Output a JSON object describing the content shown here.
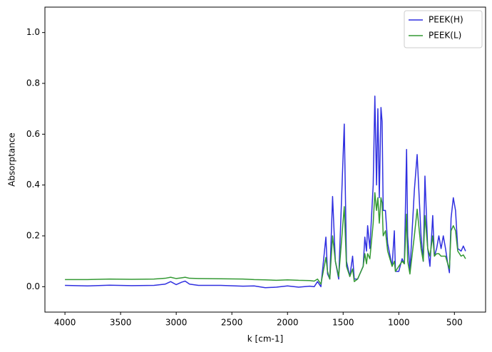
{
  "chart_data": {
    "type": "line",
    "xlabel": "k [cm-1]",
    "ylabel": "Absorptance",
    "x": [
      4000,
      3800,
      3600,
      3400,
      3200,
      3100,
      3050,
      3000,
      2950,
      2920,
      2880,
      2800,
      2600,
      2400,
      2300,
      2200,
      2100,
      2000,
      1900,
      1800,
      1760,
      1730,
      1700,
      1655,
      1640,
      1620,
      1595,
      1570,
      1540,
      1490,
      1470,
      1440,
      1415,
      1400,
      1370,
      1320,
      1305,
      1290,
      1280,
      1260,
      1230,
      1215,
      1200,
      1188,
      1175,
      1160,
      1150,
      1140,
      1120,
      1100,
      1060,
      1040,
      1030,
      1000,
      970,
      950,
      930,
      920,
      900,
      860,
      835,
      800,
      780,
      765,
      740,
      720,
      695,
      680,
      660,
      640,
      620,
      600,
      580,
      560,
      545,
      530,
      510,
      490,
      470,
      440,
      420,
      400
    ],
    "series": [
      {
        "name": "PEEK(H)",
        "color": "#2f2fe0",
        "values": [
          0.005,
          0.003,
          0.006,
          0.004,
          0.005,
          0.01,
          0.02,
          0.008,
          0.018,
          0.022,
          0.01,
          0.005,
          0.005,
          0.002,
          0.003,
          -0.004,
          -0.002,
          0.003,
          -0.002,
          0.002,
          0.0,
          0.02,
          0.0,
          0.195,
          0.05,
          0.03,
          0.355,
          0.1,
          0.03,
          0.64,
          0.1,
          0.04,
          0.12,
          0.03,
          0.03,
          0.08,
          0.195,
          0.14,
          0.24,
          0.15,
          0.4,
          0.75,
          0.4,
          0.7,
          0.35,
          0.705,
          0.65,
          0.3,
          0.3,
          0.17,
          0.08,
          0.22,
          0.06,
          0.06,
          0.11,
          0.09,
          0.54,
          0.2,
          0.06,
          0.38,
          0.52,
          0.2,
          0.1,
          0.435,
          0.15,
          0.08,
          0.28,
          0.12,
          0.15,
          0.2,
          0.15,
          0.2,
          0.15,
          0.09,
          0.055,
          0.27,
          0.35,
          0.3,
          0.15,
          0.14,
          0.16,
          0.14
        ]
      },
      {
        "name": "PEEK(L)",
        "color": "#339933",
        "values": [
          0.028,
          0.028,
          0.03,
          0.029,
          0.03,
          0.033,
          0.037,
          0.032,
          0.035,
          0.037,
          0.033,
          0.032,
          0.031,
          0.03,
          0.028,
          0.027,
          0.025,
          0.027,
          0.025,
          0.024,
          0.022,
          0.03,
          0.01,
          0.115,
          0.06,
          0.03,
          0.2,
          0.1,
          0.04,
          0.315,
          0.08,
          0.04,
          0.07,
          0.02,
          0.03,
          0.08,
          0.13,
          0.09,
          0.13,
          0.11,
          0.25,
          0.37,
          0.3,
          0.35,
          0.25,
          0.35,
          0.33,
          0.2,
          0.22,
          0.14,
          0.08,
          0.1,
          0.06,
          0.08,
          0.1,
          0.09,
          0.285,
          0.1,
          0.05,
          0.2,
          0.305,
          0.15,
          0.1,
          0.28,
          0.15,
          0.12,
          0.2,
          0.12,
          0.13,
          0.13,
          0.12,
          0.12,
          0.12,
          0.09,
          0.07,
          0.22,
          0.24,
          0.22,
          0.14,
          0.12,
          0.125,
          0.11
        ]
      }
    ],
    "xlim": [
      4180,
      220
    ],
    "ylim": [
      -0.1,
      1.1
    ],
    "xticks": [
      4000,
      3500,
      3000,
      2500,
      2000,
      1500,
      1000,
      500
    ],
    "yticks": [
      {
        "value": 0,
        "label": "0.0"
      },
      0.2,
      0.4,
      0.6,
      0.8,
      {
        "value": 1,
        "label": "1.0"
      }
    ],
    "legend": "upper right"
  }
}
